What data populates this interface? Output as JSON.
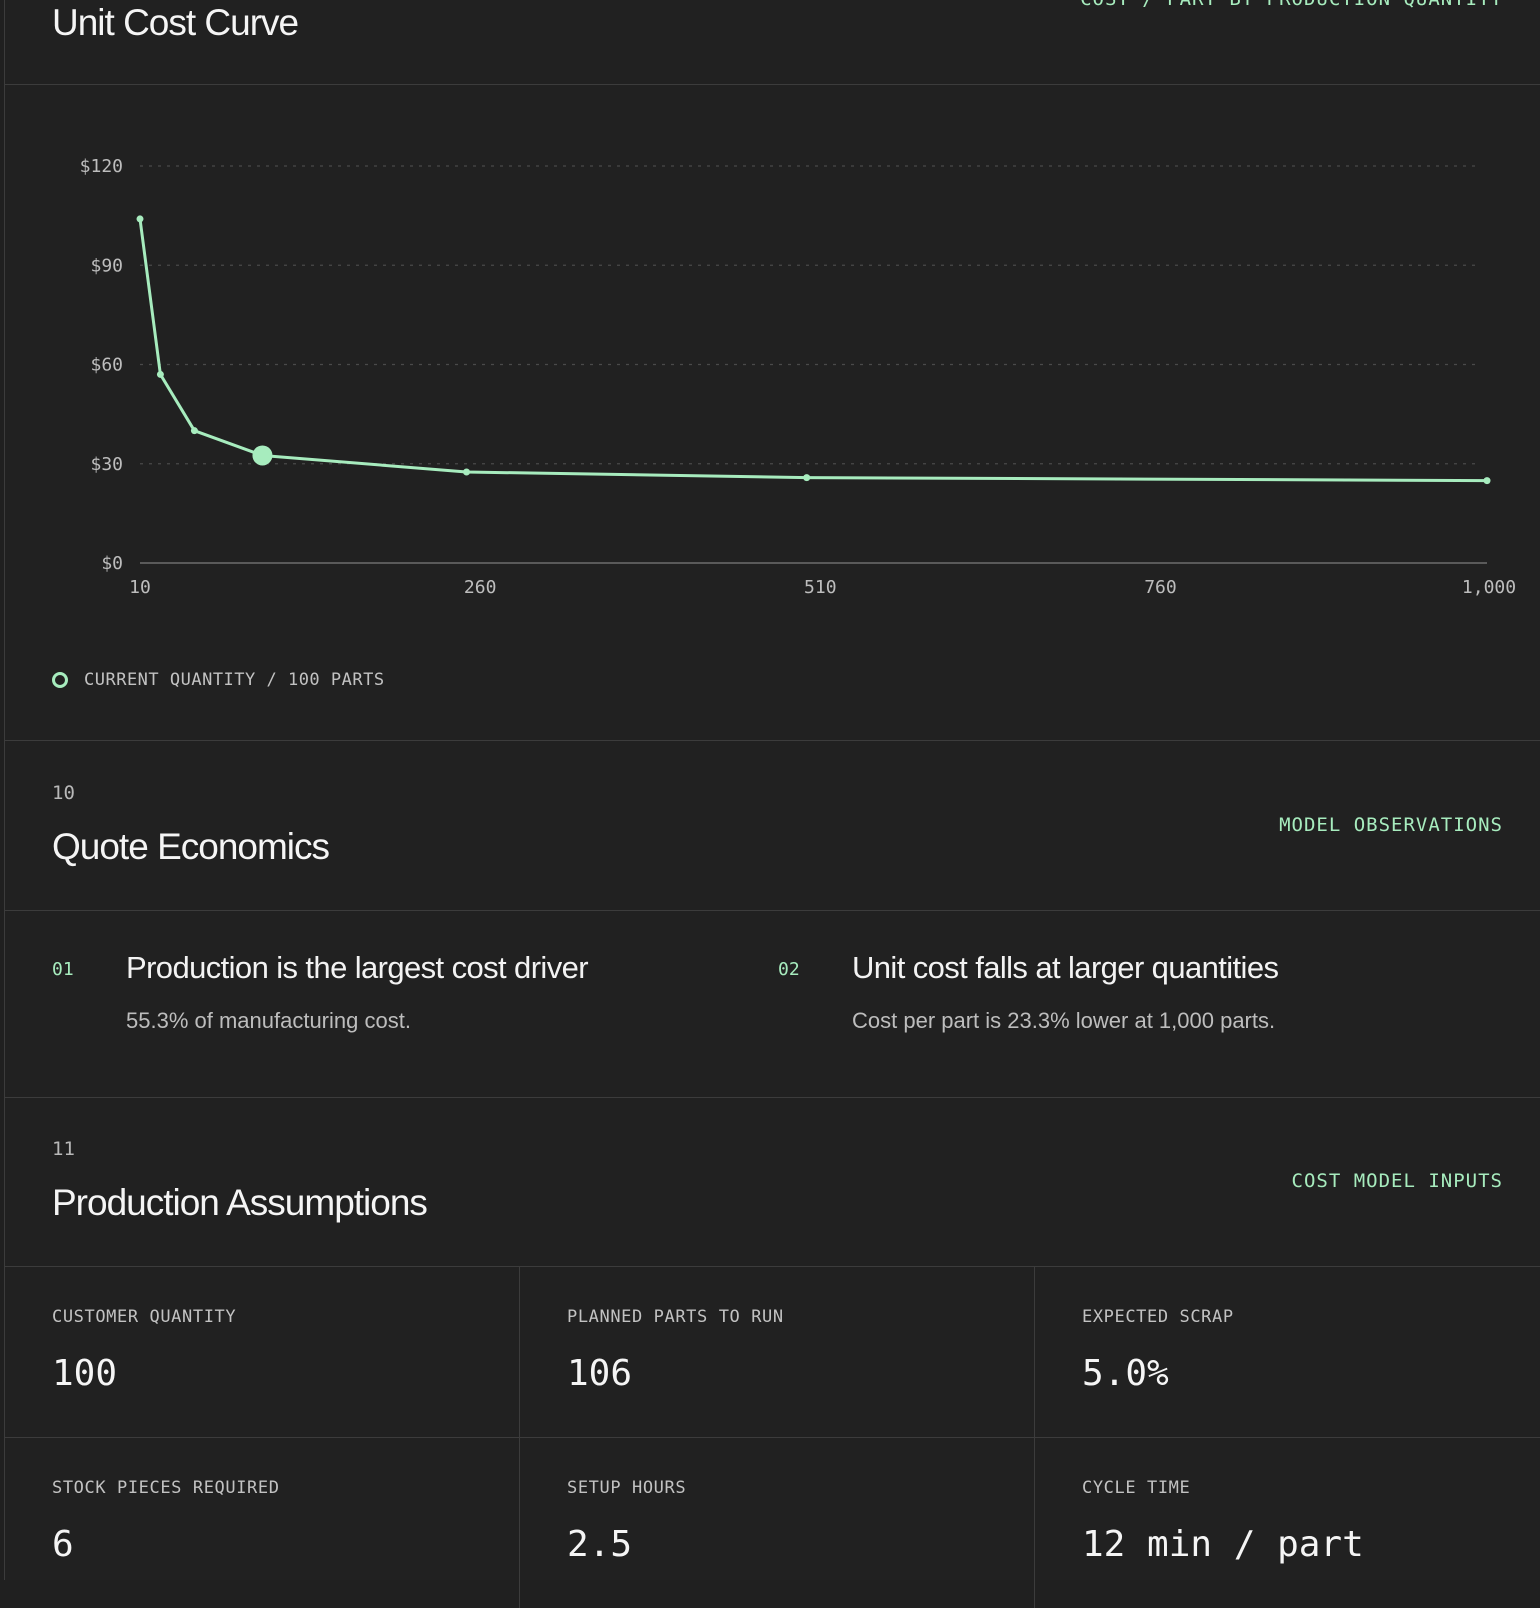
{
  "curve_section": {
    "title": "Unit Cost Curve",
    "tag": "COST / PART BY PRODUCTION QUANTITY",
    "legend": "CURRENT QUANTITY / 100 PARTS",
    "accent_color": "#a7ecbe"
  },
  "chart_data": {
    "type": "line",
    "x": [
      10,
      25,
      50,
      100,
      250,
      500,
      1000
    ],
    "y": [
      104,
      57,
      40,
      32.5,
      27.5,
      25.8,
      24.9
    ],
    "highlight": {
      "x": 100,
      "y": 32.5
    },
    "xticks": [
      10,
      260,
      510,
      760,
      1000
    ],
    "xtick_labels": [
      "10",
      "260",
      "510",
      "760",
      "1,000"
    ],
    "yticks": [
      0,
      30,
      60,
      90,
      120
    ],
    "ytick_labels": [
      "$0",
      "$30",
      "$60",
      "$90",
      "$120"
    ],
    "xlim": [
      10,
      1000
    ],
    "ylim": [
      0,
      120
    ],
    "grid": "horizontal dotted"
  },
  "quote_economics": {
    "number": "10",
    "title": "Quote Economics",
    "tag": "MODEL OBSERVATIONS",
    "observations": [
      {
        "num": "01",
        "title": "Production is the largest cost driver",
        "desc": "55.3% of manufacturing cost."
      },
      {
        "num": "02",
        "title": "Unit cost falls at larger quantities",
        "desc": "Cost per part is 23.3% lower at 1,000 parts."
      }
    ]
  },
  "assumptions": {
    "number": "11",
    "title": "Production Assumptions",
    "tag": "COST MODEL INPUTS",
    "items": [
      {
        "label": "CUSTOMER QUANTITY",
        "value": "100"
      },
      {
        "label": "PLANNED PARTS TO RUN",
        "value": "106"
      },
      {
        "label": "EXPECTED SCRAP",
        "value": "5.0%"
      },
      {
        "label": "STOCK PIECES REQUIRED",
        "value": "6"
      },
      {
        "label": "SETUP HOURS",
        "value": "2.5"
      },
      {
        "label": "CYCLE TIME",
        "value": "12 min / part"
      }
    ]
  }
}
